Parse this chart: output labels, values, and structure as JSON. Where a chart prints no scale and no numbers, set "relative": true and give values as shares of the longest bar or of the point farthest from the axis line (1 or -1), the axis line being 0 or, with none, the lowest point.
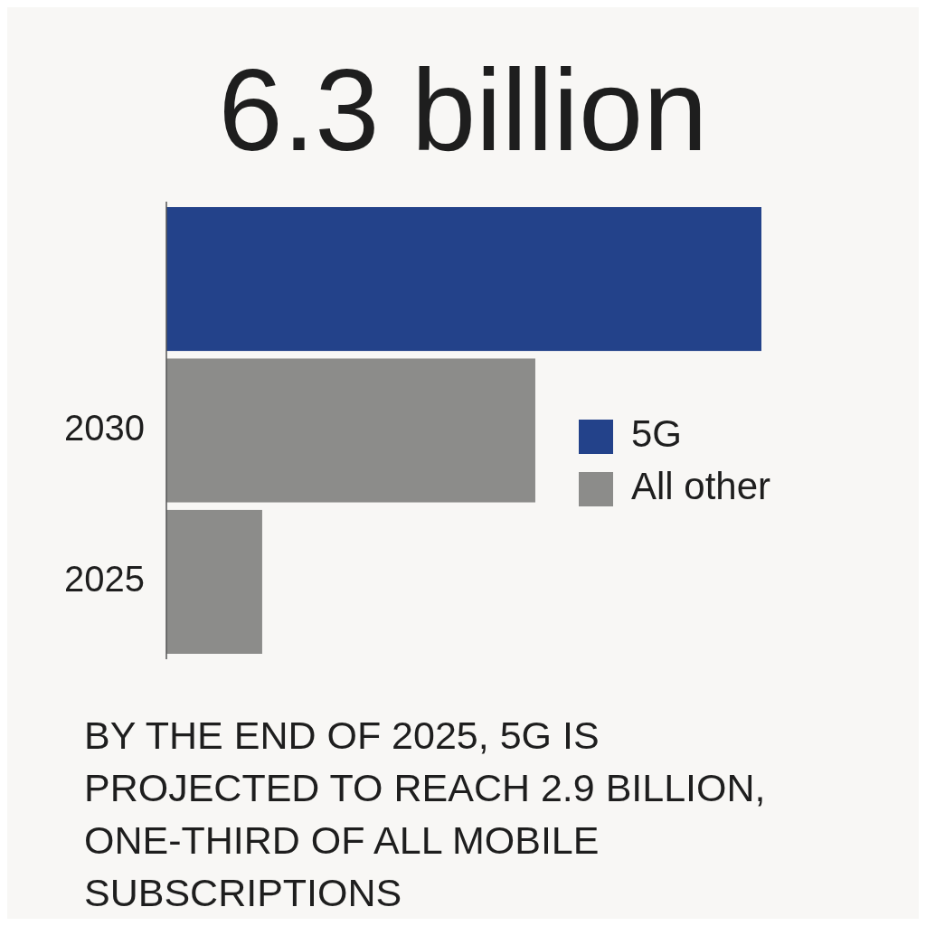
{
  "chart_data": {
    "type": "bar",
    "orientation": "horizontal",
    "stacked": true,
    "relative": true,
    "title": "6.3 billion",
    "categories": [
      null,
      "2030",
      "2025"
    ],
    "series": [
      {
        "name": "5G",
        "color": "#23428a",
        "values": [
          1,
          null,
          null
        ]
      },
      {
        "name": "All other",
        "color": "#8c8c8a",
        "values": [
          null,
          0.62,
          0.161
        ]
      }
    ],
    "legend": "right",
    "annotations": [
      "BY THE END OF 2025, 5G IS PROJECTED TO REACH 2.9 BILLION, ONE-THIRD OF ALL MOBILE SUBSCRIPTIONS"
    ]
  }
}
